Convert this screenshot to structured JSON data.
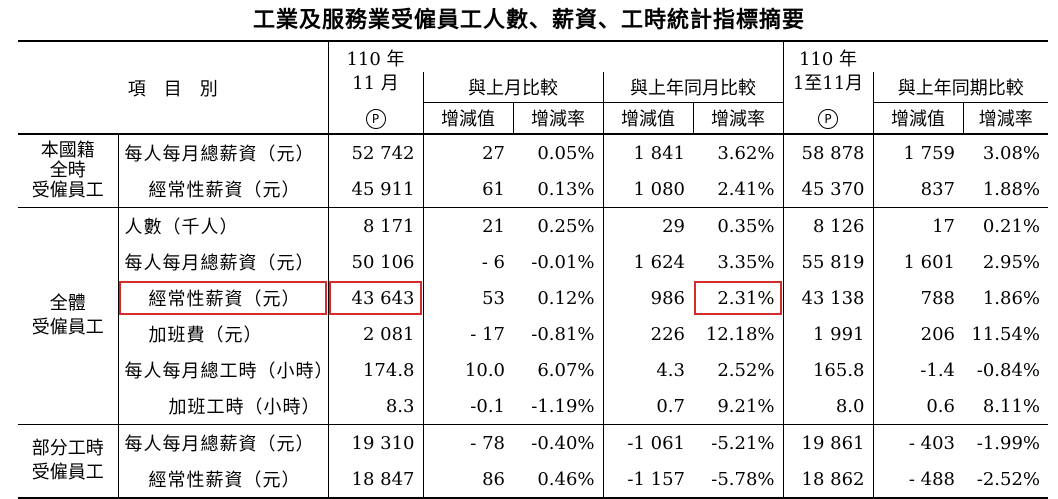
{
  "title": "工業及服務業受僱員工人數、薪資、工時統計指標摘要",
  "header": {
    "item_col": "項　目　別",
    "col_month": "110 年\n11 月",
    "col_cum": "110 年\n1至11月",
    "p_mark": "P",
    "grp_mom": "與上月比較",
    "grp_yoy": "與上年同月比較",
    "grp_cum": "與上年同期比較",
    "diff": "增減值",
    "rate": "增減率"
  },
  "sections": {
    "domestic": "本國籍\n全時\n受僱員工",
    "all": "全體\n受僱員工",
    "part": "部分工時\n受僱員工"
  },
  "rows": [
    {
      "label": "每人每月總薪資（元）",
      "v": [
        "52 742",
        "27",
        "0.05%",
        "1 841",
        "3.62%",
        "58 878",
        "1 759",
        "3.08%"
      ]
    },
    {
      "label": "經常性薪資（元）",
      "v": [
        "45 911",
        "61",
        "0.13%",
        "1 080",
        "2.41%",
        "45 370",
        "837",
        "1.88%"
      ]
    },
    {
      "label": "人數（千人）",
      "v": [
        "8 171",
        "21",
        "0.25%",
        "29",
        "0.35%",
        "8 126",
        "17",
        "0.21%"
      ]
    },
    {
      "label": "每人每月總薪資（元）",
      "v": [
        "50 106",
        "- 6",
        "-0.01%",
        "1 624",
        "3.35%",
        "55 819",
        "1 601",
        "2.95%"
      ]
    },
    {
      "label": "經常性薪資（元）",
      "v": [
        "43 643",
        "53",
        "0.12%",
        "986",
        "2.31%",
        "43 138",
        "788",
        "1.86%"
      ]
    },
    {
      "label": "加班費（元）",
      "v": [
        "2 081",
        "- 17",
        "-0.81%",
        "226",
        "12.18%",
        "1 991",
        "206",
        "11.54%"
      ]
    },
    {
      "label": "每人每月總工時（小時）",
      "v": [
        "174.8",
        "10.0",
        "6.07%",
        "4.3",
        "2.52%",
        "165.8",
        "-1.4",
        "-0.84%"
      ]
    },
    {
      "label": "加班工時（小時）",
      "v": [
        "8.3",
        "-0.1",
        "-1.19%",
        "0.7",
        "9.21%",
        "8.0",
        "0.6",
        "8.11%"
      ]
    },
    {
      "label": "每人每月總薪資（元）",
      "v": [
        "19 310",
        "- 78",
        "-0.40%",
        "-1 061",
        "-5.21%",
        "19 861",
        "- 403",
        "-1.99%"
      ]
    },
    {
      "label": "經常性薪資（元）",
      "v": [
        "18 847",
        "86",
        "0.46%",
        "-1 157",
        "-5.78%",
        "18 862",
        "- 488",
        "-2.52%"
      ]
    }
  ],
  "highlight_color": "#d62b2b"
}
